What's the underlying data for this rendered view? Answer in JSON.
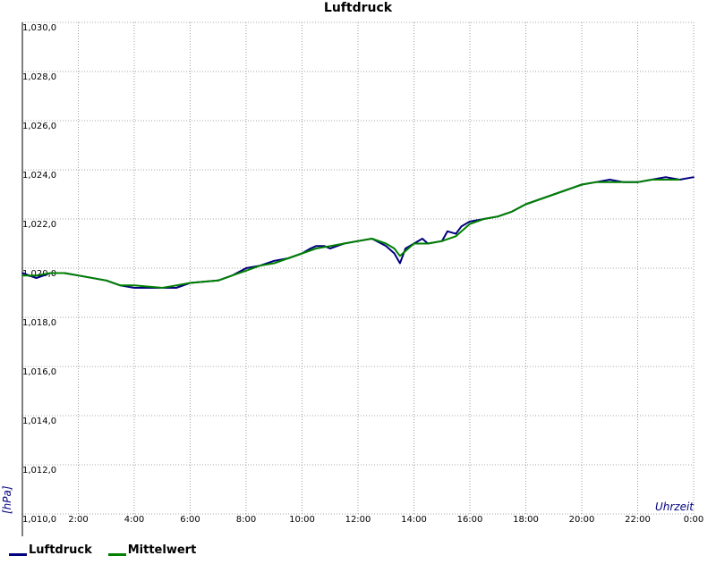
{
  "chart_data": {
    "type": "line",
    "title": "Luftdruck",
    "xlabel": "Uhrzeit",
    "ylabel": "[hPa]",
    "x_ticks": [
      "1,010,0",
      "2:00",
      "4:00",
      "6:00",
      "8:00",
      "10:00",
      "12:00",
      "14:00",
      "16:00",
      "18:00",
      "20:00",
      "22:00",
      "0:00"
    ],
    "y_ticks": [
      "1,012,0",
      "1,014,0",
      "1,016,0",
      "1,018,0",
      "1,020,0",
      "1,022,0",
      "1,024,0",
      "1,026,0",
      "1,028,0",
      "1,030,0"
    ],
    "xlim": [
      0,
      24
    ],
    "ylim": [
      1010,
      1030
    ],
    "grid": true,
    "legend_position": "bottom-left",
    "series": [
      {
        "name": "Luftdruck",
        "color": "#00007f",
        "x": [
          0,
          0.5,
          1,
          1.5,
          2,
          3,
          3.5,
          4,
          5,
          5.5,
          6,
          7,
          7.5,
          8,
          8.5,
          9,
          9.5,
          10,
          10.3,
          10.5,
          10.8,
          11,
          11.5,
          12,
          12.5,
          13,
          13.3,
          13.5,
          13.7,
          14,
          14.3,
          14.5,
          15,
          15.2,
          15.5,
          15.7,
          16,
          16.5,
          17,
          17.5,
          18,
          18.5,
          19,
          19.5,
          20,
          20.5,
          21,
          21.5,
          22,
          22.5,
          23,
          23.5,
          24
        ],
        "y": [
          1019.8,
          1019.6,
          1019.8,
          1019.8,
          1019.7,
          1019.5,
          1019.3,
          1019.2,
          1019.2,
          1019.2,
          1019.4,
          1019.5,
          1019.7,
          1020.0,
          1020.1,
          1020.3,
          1020.4,
          1020.6,
          1020.8,
          1020.9,
          1020.9,
          1020.8,
          1021.0,
          1021.1,
          1021.2,
          1020.9,
          1020.6,
          1020.2,
          1020.8,
          1021.0,
          1021.2,
          1021.0,
          1021.1,
          1021.5,
          1021.4,
          1021.7,
          1021.9,
          1022.0,
          1022.1,
          1022.3,
          1022.6,
          1022.8,
          1023.0,
          1023.2,
          1023.4,
          1023.5,
          1023.6,
          1023.5,
          1023.5,
          1023.6,
          1023.7,
          1023.6,
          1023.7
        ]
      },
      {
        "name": "Mittelwert",
        "color": "#008000",
        "x": [
          0,
          0.5,
          1,
          1.5,
          2,
          3,
          3.5,
          4,
          5,
          5.5,
          6,
          7,
          7.5,
          8,
          8.5,
          9,
          9.5,
          10,
          10.5,
          11,
          11.5,
          12,
          12.5,
          13,
          13.3,
          13.5,
          13.7,
          14,
          14.5,
          15,
          15.5,
          16,
          16.5,
          17,
          17.5,
          18,
          18.5,
          19,
          19.5,
          20,
          20.5,
          21,
          21.5,
          22,
          22.5,
          23,
          23.5
        ],
        "y": [
          1019.7,
          1019.7,
          1019.8,
          1019.8,
          1019.7,
          1019.5,
          1019.3,
          1019.3,
          1019.2,
          1019.3,
          1019.4,
          1019.5,
          1019.7,
          1019.9,
          1020.1,
          1020.2,
          1020.4,
          1020.6,
          1020.8,
          1020.9,
          1021.0,
          1021.1,
          1021.2,
          1021.0,
          1020.8,
          1020.5,
          1020.7,
          1021.0,
          1021.0,
          1021.1,
          1021.3,
          1021.8,
          1022.0,
          1022.1,
          1022.3,
          1022.6,
          1022.8,
          1023.0,
          1023.2,
          1023.4,
          1023.5,
          1023.5,
          1023.5,
          1023.5,
          1023.6,
          1023.6,
          1023.6
        ]
      }
    ]
  }
}
